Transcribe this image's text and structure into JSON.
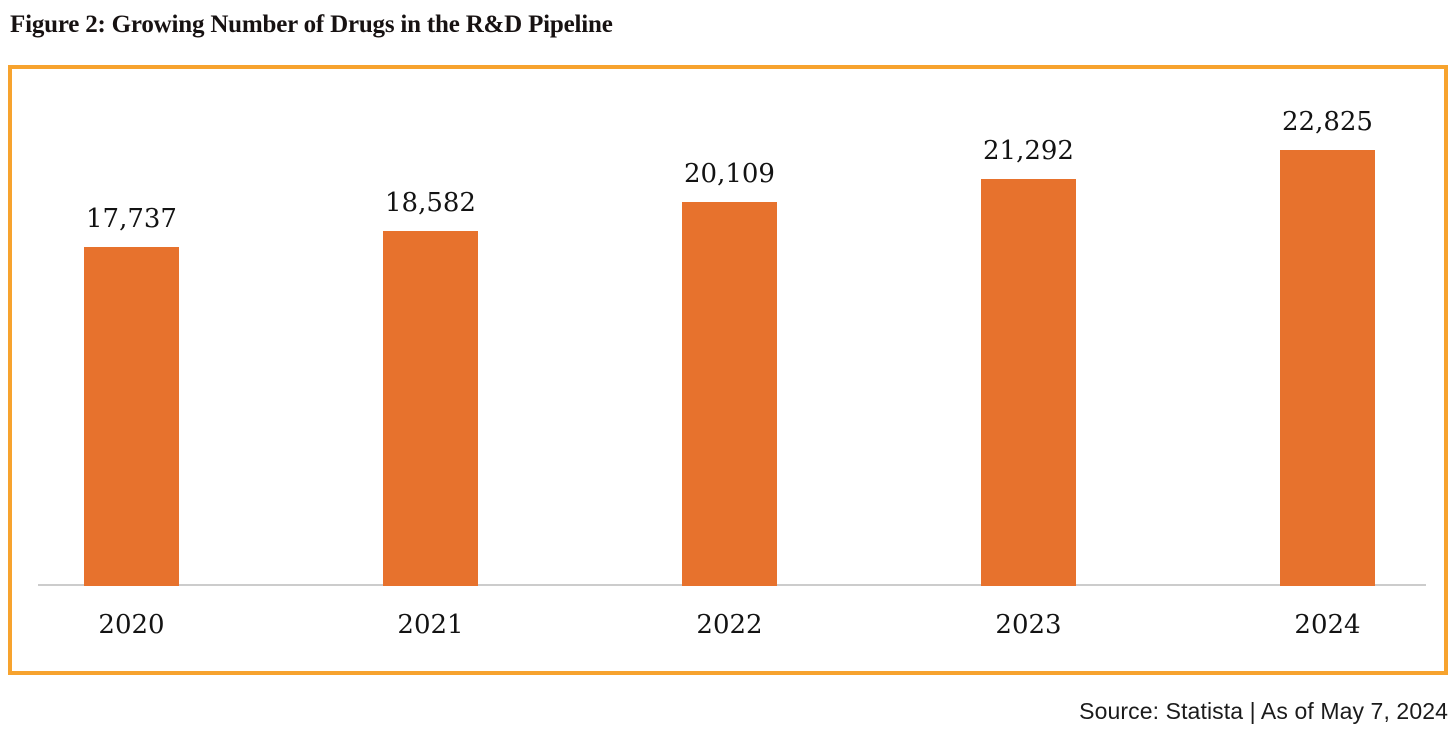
{
  "figure": {
    "title": "Figure 2: Growing Number of Drugs in the R&D Pipeline",
    "source": "Source: Statista | As of May 7, 2024"
  },
  "colors": {
    "bar": "#E7722D",
    "frame_border": "#F7A32E",
    "axis_line": "#CCCCCC",
    "title_text": "#171212",
    "label_text": "#131313"
  },
  "chart_data": {
    "type": "bar",
    "title": "Figure 2: Growing Number of Drugs in the R&D Pipeline",
    "categories": [
      "2020",
      "2021",
      "2022",
      "2023",
      "2024"
    ],
    "values": [
      17737,
      18582,
      20109,
      21292,
      22825
    ],
    "value_labels": [
      "17,737",
      "18,582",
      "20,109",
      "21,292",
      "22,825"
    ],
    "xlabel": "",
    "ylabel": "",
    "ylim": [
      0,
      24000
    ],
    "grid": false,
    "legend": false,
    "bar_color": "#E7722D",
    "source_note": "Source: Statista | As of May 7, 2024"
  }
}
